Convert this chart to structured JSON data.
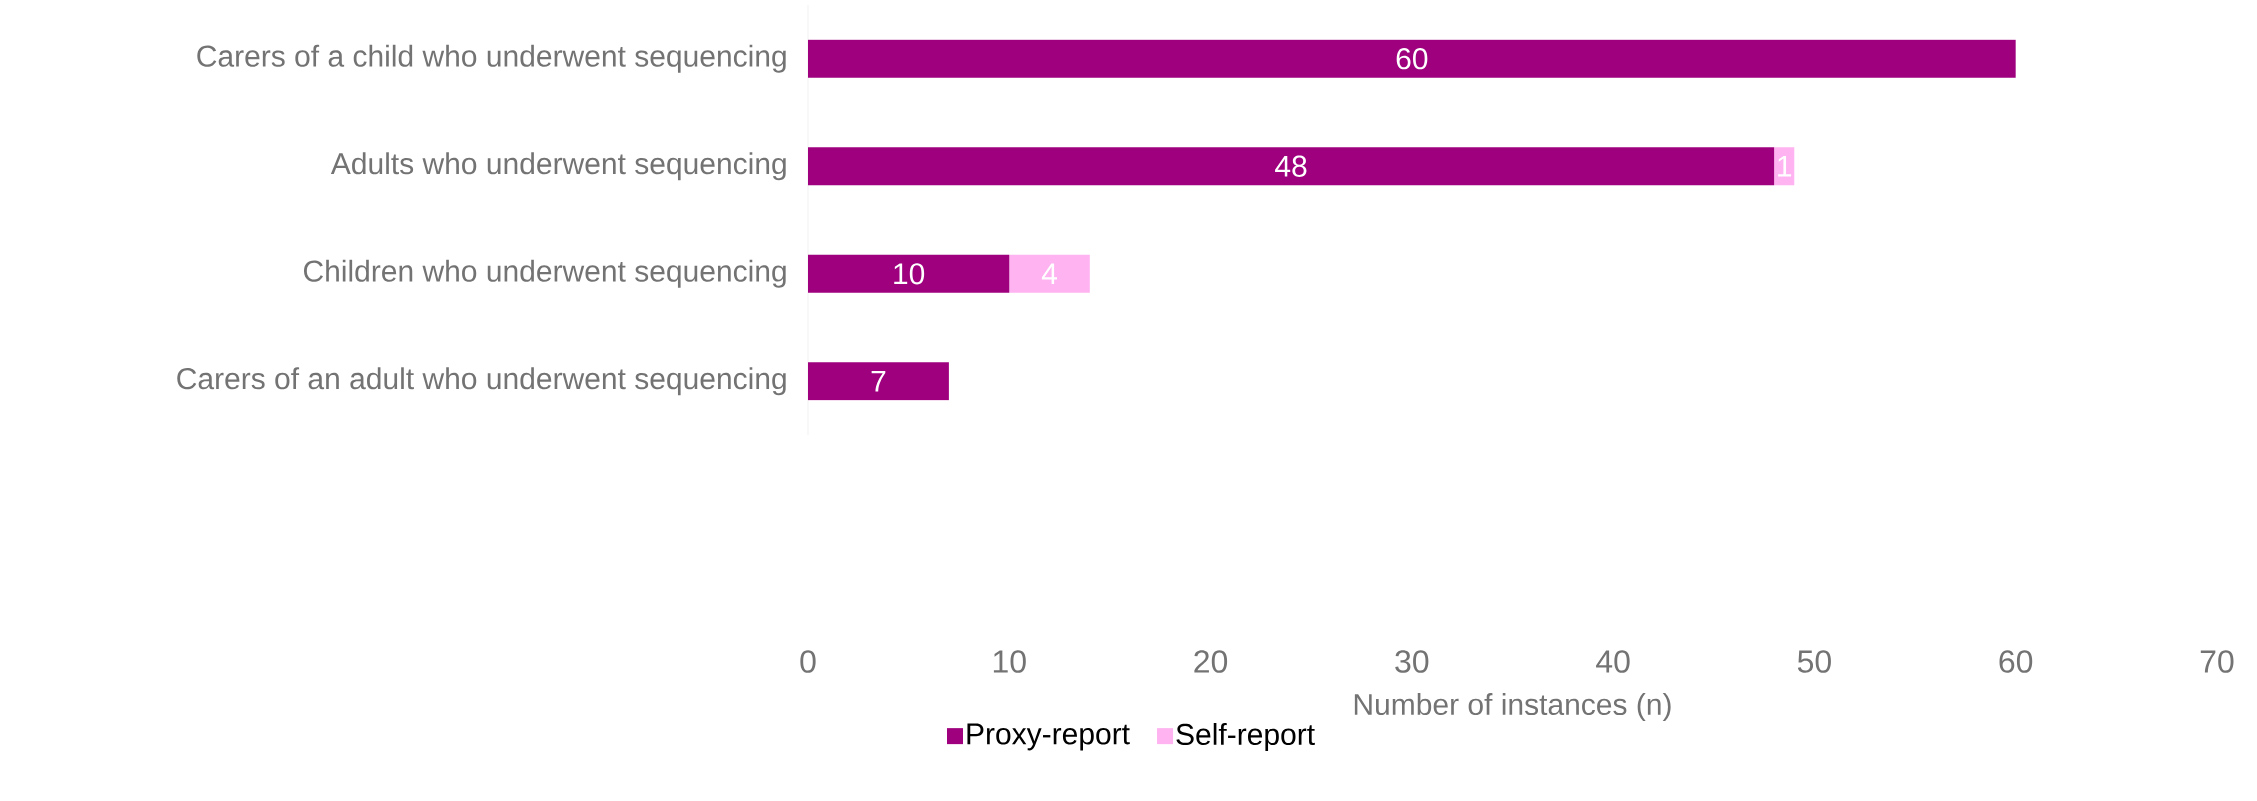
{
  "chart_data": {
    "type": "bar",
    "orientation": "horizontal",
    "stacked": true,
    "categories": [
      "Carers of a child who underwent sequencing",
      "Adults who underwent sequencing",
      "Children who underwent sequencing",
      "Carers of an adult who underwent sequencing"
    ],
    "series": [
      {
        "name": "Proxy-report",
        "color": "#9e007e",
        "values": [
          60,
          48,
          10,
          7
        ]
      },
      {
        "name": "Self-report",
        "color": "#ffb3f0",
        "values": [
          null,
          1,
          4,
          null
        ]
      }
    ],
    "xlabel": "Number of instances (n)",
    "xlim": [
      0,
      70
    ],
    "xticks": [
      0,
      10,
      20,
      30,
      40,
      50,
      60,
      70
    ],
    "data_labels": true,
    "legend": "bottom"
  }
}
